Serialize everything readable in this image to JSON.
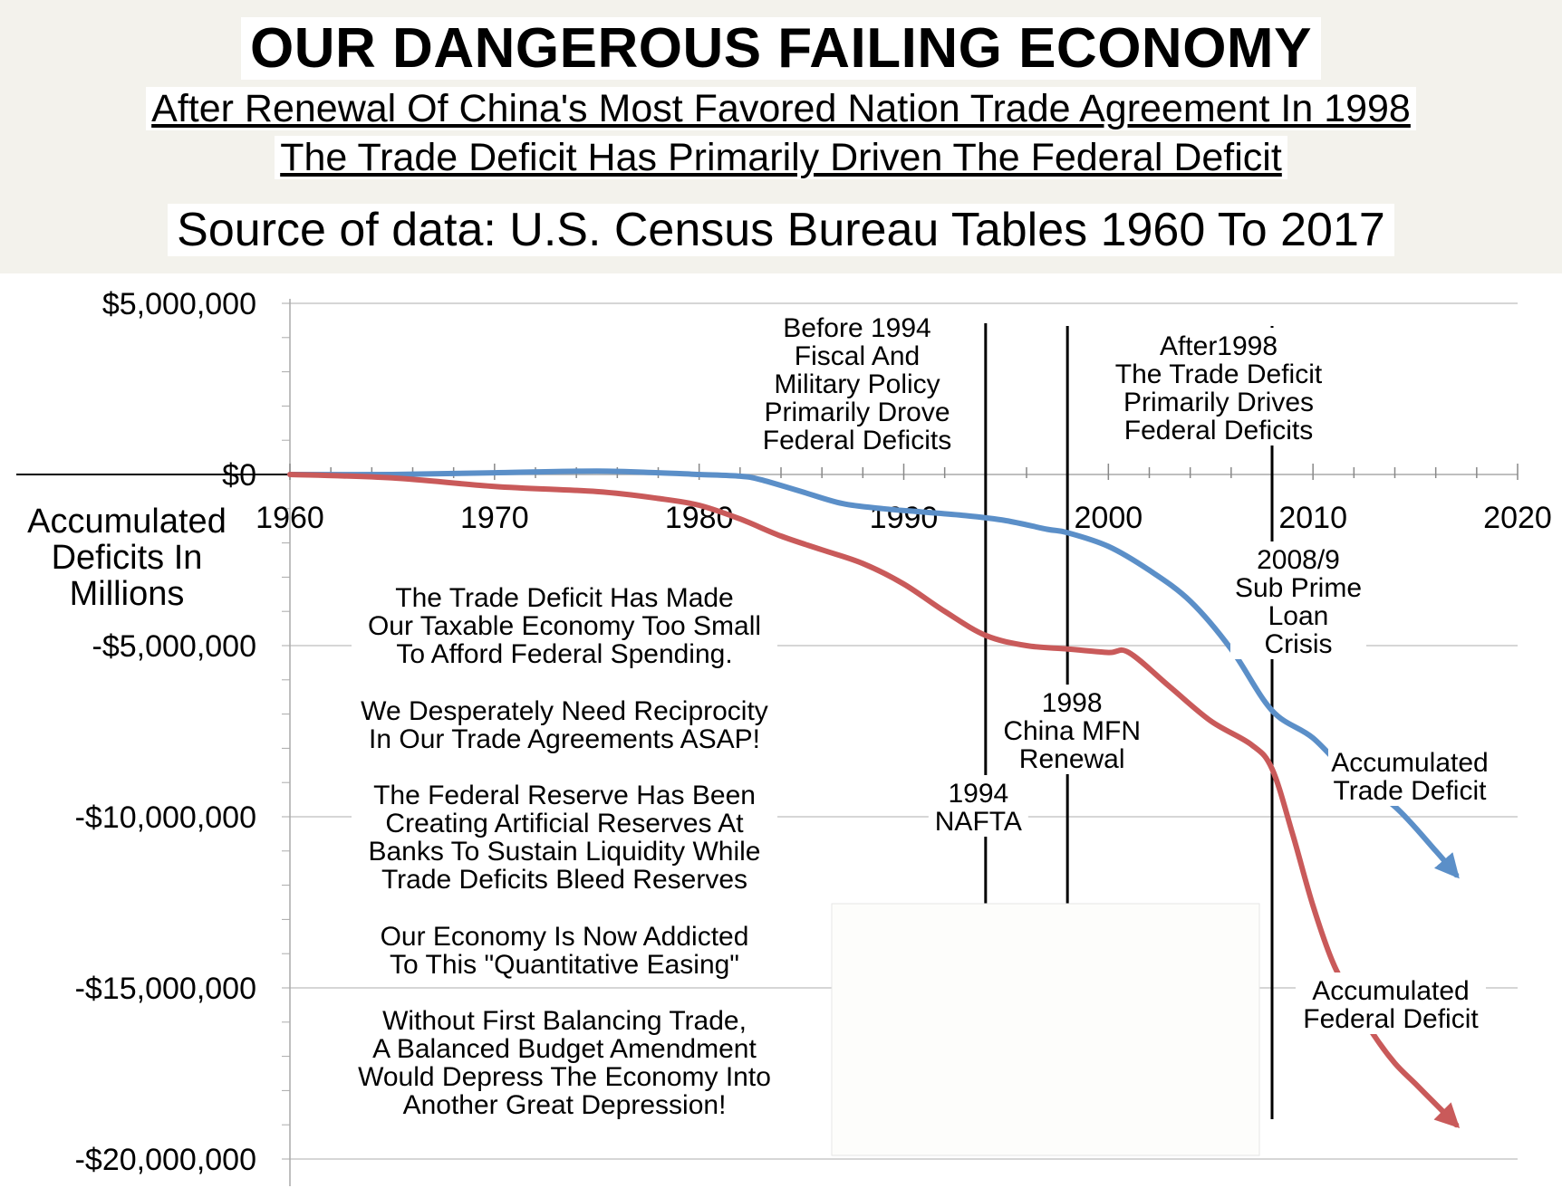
{
  "header": {
    "title": "OUR DANGEROUS FAILING ECONOMY",
    "subtitle_line1": "After Renewal Of China's Most Favored Nation Trade Agreement In 1998",
    "subtitle_line2": "The Trade Deficit Has Primarily Driven The Federal Deficit",
    "source": "Source of data:  U.S. Census Bureau Tables 1960 To 2017"
  },
  "chart_data": {
    "type": "line",
    "xlim": [
      1960,
      2020
    ],
    "ylim": [
      -20000000,
      5000000
    ],
    "x_ticks": [
      {
        "value": 1960,
        "label": "1960"
      },
      {
        "value": 1970,
        "label": "1970"
      },
      {
        "value": 1980,
        "label": "1980"
      },
      {
        "value": 1990,
        "label": "1990"
      },
      {
        "value": 2000,
        "label": "2000"
      },
      {
        "value": 2010,
        "label": "2010"
      },
      {
        "value": 2020,
        "label": "2020"
      }
    ],
    "y_ticks": [
      {
        "value": 5000000,
        "label": "$5,000,000"
      },
      {
        "value": 0,
        "label": "$0"
      },
      {
        "value": -5000000,
        "label": "-$5,000,000"
      },
      {
        "value": -10000000,
        "label": "-$10,000,000"
      },
      {
        "value": -15000000,
        "label": "-$15,000,000"
      },
      {
        "value": -20000000,
        "label": "-$20,000,000"
      }
    ],
    "ylabel": [
      "Accumulated",
      "Deficits In",
      "Millions"
    ],
    "grid": true,
    "series": [
      {
        "name": "Accumulated Trade Deficit",
        "label_lines": [
          "Accumulated",
          "Trade Deficit"
        ],
        "color": "#5b8fc8",
        "x": [
          1960,
          1965,
          1970,
          1975,
          1978,
          1980,
          1982,
          1983,
          1985,
          1987,
          1989,
          1991,
          1993,
          1995,
          1997,
          1998,
          2000,
          2002,
          2004,
          2006,
          2008,
          2010,
          2012,
          2014,
          2016,
          2017
        ],
        "y": [
          0,
          0,
          50000,
          100000,
          50000,
          0,
          -50000,
          -150000,
          -500000,
          -850000,
          -1000000,
          -1100000,
          -1200000,
          -1350000,
          -1600000,
          -1700000,
          -2100000,
          -2800000,
          -3700000,
          -5100000,
          -6900000,
          -7700000,
          -8900000,
          -9700000,
          -11000000,
          -11700000
        ]
      },
      {
        "name": "Accumulated Federal Deficit",
        "label_lines": [
          "Accumulated",
          "Federal Deficit"
        ],
        "color": "#c95a5a",
        "x": [
          1960,
          1965,
          1970,
          1975,
          1978,
          1980,
          1982,
          1984,
          1986,
          1988,
          1990,
          1992,
          1994,
          1996,
          1998,
          2000,
          2001,
          2003,
          2005,
          2007,
          2008,
          2009,
          2010,
          2011,
          2012,
          2013,
          2014,
          2015,
          2016,
          2017
        ],
        "y": [
          0,
          -100000,
          -350000,
          -500000,
          -700000,
          -900000,
          -1300000,
          -1800000,
          -2200000,
          -2600000,
          -3200000,
          -4000000,
          -4700000,
          -5000000,
          -5100000,
          -5200000,
          -5200000,
          -6200000,
          -7200000,
          -7900000,
          -8600000,
          -10500000,
          -12600000,
          -14300000,
          -15400000,
          -16400000,
          -17200000,
          -17800000,
          -18400000,
          -19000000
        ]
      }
    ],
    "vertical_lines": [
      {
        "x": 1994,
        "label_lines": [
          "1994",
          "NAFTA"
        ]
      },
      {
        "x": 1998,
        "label_lines": [
          "1998",
          "China MFN",
          "Renewal"
        ]
      },
      {
        "x": 2008,
        "label_lines": [
          "2008/9",
          "Sub Prime",
          "Loan",
          "Crisis"
        ]
      }
    ],
    "annotations": {
      "before_1994": [
        "Before 1994",
        "Fiscal And",
        "Military Policy",
        "Primarily Drove",
        "Federal Deficits"
      ],
      "after_1998": [
        "After1998",
        "The Trade Deficit",
        "Primarily Drives",
        "Federal  Deficits"
      ],
      "commentary": [
        [
          "The Trade Deficit Has Made",
          "Our Taxable Economy Too Small",
          "To Afford Federal Spending."
        ],
        [
          "We Desperately Need Reciprocity",
          "In Our Trade Agreements ASAP!"
        ],
        [
          "The Federal Reserve Has Been",
          "Creating Artificial Reserves At",
          "Banks To Sustain Liquidity While",
          "Trade Deficits Bleed Reserves"
        ],
        [
          "Our Economy Is Now Addicted",
          "To This \"Quantitative Easing\""
        ],
        [
          "Without First Balancing Trade,",
          "A Balanced Budget Amendment",
          "Would Depress The Economy Into",
          "Another Great Depression!"
        ]
      ]
    }
  }
}
